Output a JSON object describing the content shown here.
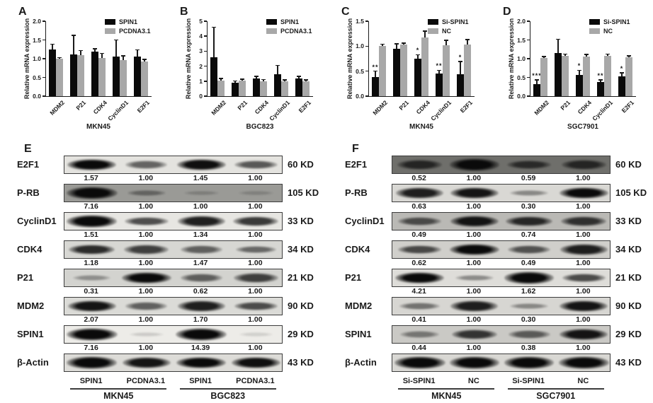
{
  "figure": {
    "background": "#ffffff"
  },
  "colors": {
    "black_bar": "#0a0a0a",
    "gray_bar": "#a8a8a8",
    "axis": "#1a1a1a",
    "band": "#0a0a0a"
  },
  "ylabel": "Relative mRNA expression",
  "chart_data": [
    {
      "type": "bar",
      "panel_label": "A",
      "cell_line": "MKN45",
      "ylabel": "Relative mRNA expression",
      "categories": [
        "MDM2",
        "P21",
        "CDK4",
        "CyclinD1",
        "E2F1"
      ],
      "ymax": 2.0,
      "yticks": [
        0,
        0.5,
        1.0,
        1.5,
        2.0
      ],
      "ytick_labels": [
        "0.0",
        "0.5",
        "1.0",
        "1.5",
        "2.0"
      ],
      "legend_position": "top-right",
      "series": [
        {
          "name": "SPIN1",
          "color": "#0a0a0a",
          "values": [
            1.25,
            1.12,
            1.18,
            1.05,
            1.06
          ],
          "errors": [
            0.14,
            0.5,
            0.08,
            0.45,
            0.18
          ]
        },
        {
          "name": "PCDNA3.1",
          "color": "#a8a8a8",
          "values": [
            1.0,
            1.1,
            1.01,
            0.96,
            0.93
          ],
          "errors": [
            0.03,
            0.12,
            0.13,
            0.12,
            0.05
          ]
        }
      ],
      "significance": [
        "",
        "",
        "",
        "",
        ""
      ]
    },
    {
      "type": "bar",
      "panel_label": "B",
      "cell_line": "BGC823",
      "ylabel": "Relative mRNA expression",
      "categories": [
        "MDM2",
        "P21",
        "CDK4",
        "CyclinD1",
        "E2F1"
      ],
      "ymax": 5,
      "yticks": [
        0,
        1,
        2,
        3,
        4,
        5
      ],
      "ytick_labels": [
        "0",
        "1",
        "2",
        "3",
        "4",
        "5"
      ],
      "legend_position": "top-right",
      "series": [
        {
          "name": "SPIN1",
          "color": "#0a0a0a",
          "values": [
            2.6,
            0.9,
            1.2,
            1.45,
            1.2
          ],
          "errors": [
            2.0,
            0.12,
            0.12,
            0.6,
            0.13
          ]
        },
        {
          "name": "PCDNA3.1",
          "color": "#a8a8a8",
          "values": [
            1.05,
            1.05,
            1.0,
            1.0,
            1.0
          ],
          "errors": [
            0.13,
            0.08,
            0.1,
            0.08,
            0.08
          ]
        }
      ],
      "significance": [
        "",
        "",
        "",
        "",
        ""
      ]
    },
    {
      "type": "bar",
      "panel_label": "C",
      "cell_line": "MKN45",
      "ylabel": "Relative mRNA expression",
      "categories": [
        "MDM2",
        "P21",
        "CDK4",
        "CyclinD1",
        "E2F1"
      ],
      "ymax": 1.5,
      "yticks": [
        0,
        0.5,
        1.0,
        1.5
      ],
      "ytick_labels": [
        "0.0",
        "0.5",
        "1.0",
        "1.5"
      ],
      "legend_position": "top-right",
      "series": [
        {
          "name": "Si-SPIN1",
          "color": "#0a0a0a",
          "values": [
            0.38,
            0.95,
            0.75,
            0.45,
            0.44
          ],
          "errors": [
            0.12,
            0.1,
            0.08,
            0.07,
            0.25
          ]
        },
        {
          "name": "NC",
          "color": "#a8a8a8",
          "values": [
            1.0,
            1.03,
            1.17,
            1.02,
            1.03
          ],
          "errors": [
            0.04,
            0.03,
            0.13,
            0.1,
            0.1
          ]
        }
      ],
      "significance": [
        "**",
        "",
        "*",
        "**",
        "*"
      ]
    },
    {
      "type": "bar",
      "panel_label": "D",
      "cell_line": "SGC7901",
      "ylabel": "Relative mRNA expression",
      "categories": [
        "MDM2",
        "P21",
        "CDK4",
        "CyclinD1",
        "E2F1"
      ],
      "ymax": 2.0,
      "yticks": [
        0,
        0.5,
        1.0,
        1.5,
        2.0
      ],
      "ytick_labels": [
        "0.0",
        "0.5",
        "1.0",
        "1.5",
        "2.0"
      ],
      "legend_position": "top-right",
      "series": [
        {
          "name": "Si-SPIN1",
          "color": "#0a0a0a",
          "values": [
            0.33,
            1.15,
            0.57,
            0.38,
            0.53
          ],
          "errors": [
            0.1,
            0.37,
            0.12,
            0.05,
            0.09
          ]
        },
        {
          "name": "NC",
          "color": "#a8a8a8",
          "values": [
            1.02,
            1.07,
            1.06,
            1.07,
            1.03
          ],
          "errors": [
            0.04,
            0.05,
            0.05,
            0.05,
            0.05
          ]
        }
      ],
      "significance": [
        "***",
        "",
        "*",
        "**",
        "*"
      ]
    }
  ],
  "blot_panels": [
    {
      "panel_label": "E",
      "lane_labels": [
        "SPIN1",
        "PCDNA3.1",
        "SPIN1",
        "PCDNA3.1"
      ],
      "groups": [
        "MKN45",
        "BGC823"
      ],
      "rows": [
        {
          "protein": "E2F1",
          "kd": "60 KD",
          "values": [
            "1.57",
            "1.00",
            "1.45",
            "1.00"
          ],
          "bands": [
            0.9,
            0.5,
            0.88,
            0.55
          ],
          "bg": "#e4e3df"
        },
        {
          "protein": "P-RB",
          "kd": "105 KD",
          "values": [
            "7.16",
            "1.00",
            "1.00",
            "1.00"
          ],
          "bands": [
            1.0,
            0.3,
            0.12,
            0.1
          ],
          "bg": "#9a9a96"
        },
        {
          "protein": "CyclinD1",
          "kd": "33 KD",
          "values": [
            "1.51",
            "1.00",
            "1.34",
            "1.00"
          ],
          "bands": [
            0.95,
            0.6,
            0.8,
            0.7
          ],
          "bg": "#e7e6e2"
        },
        {
          "protein": "CDK4",
          "kd": "34 KD",
          "values": [
            "1.18",
            "1.00",
            "1.47",
            "1.00"
          ],
          "bands": [
            0.75,
            0.65,
            0.5,
            0.45
          ],
          "bg": "#d7d7d3"
        },
        {
          "protein": "P21",
          "kd": "21 KD",
          "values": [
            "0.31",
            "1.00",
            "0.62",
            "1.00"
          ],
          "bands": [
            0.25,
            0.9,
            0.5,
            0.65
          ],
          "bg": "#d3d3cf"
        },
        {
          "protein": "MDM2",
          "kd": "90 KD",
          "values": [
            "2.07",
            "1.00",
            "1.70",
            "1.00"
          ],
          "bands": [
            0.85,
            0.5,
            0.8,
            0.6
          ],
          "bg": "#dbdbd7"
        },
        {
          "protein": "SPIN1",
          "kd": "29 KD",
          "values": [
            "7.16",
            "1.00",
            "14.39",
            "1.00"
          ],
          "bands": [
            1.0,
            0.06,
            1.0,
            0.04
          ],
          "bg": "#edece8"
        },
        {
          "protein": "β-Actin",
          "kd": "43 KD",
          "values": [],
          "bands": [
            0.95,
            0.85,
            0.92,
            0.88
          ],
          "bg": "#dddcd8"
        }
      ]
    },
    {
      "panel_label": "F",
      "lane_labels": [
        "Si-SPIN1",
        "NC",
        "Si-SPIN1",
        "NC"
      ],
      "groups": [
        "MKN45",
        "SGC7901"
      ],
      "rows": [
        {
          "protein": "E2F1",
          "kd": "60 KD",
          "values": [
            "0.52",
            "1.00",
            "0.59",
            "1.00"
          ],
          "bands": [
            0.65,
            0.95,
            0.6,
            0.65
          ],
          "bg": "#6f6f6b"
        },
        {
          "protein": "P-RB",
          "kd": "105 KD",
          "values": [
            "0.63",
            "1.00",
            "0.30",
            "1.00"
          ],
          "bands": [
            0.8,
            0.85,
            0.3,
            0.9
          ],
          "bg": "#d9d8d4"
        },
        {
          "protein": "CyclinD1",
          "kd": "33 KD",
          "values": [
            "0.49",
            "1.00",
            "0.74",
            "1.00"
          ],
          "bands": [
            0.55,
            0.85,
            0.75,
            0.7
          ],
          "bg": "#bab9b5"
        },
        {
          "protein": "CDK4",
          "kd": "34 KD",
          "values": [
            "0.62",
            "1.00",
            "0.49",
            "1.00"
          ],
          "bands": [
            0.6,
            0.9,
            0.55,
            0.8
          ],
          "bg": "#d0cfcb"
        },
        {
          "protein": "P21",
          "kd": "21 KD",
          "values": [
            "4.21",
            "1.00",
            "1.62",
            "1.00"
          ],
          "bands": [
            0.9,
            0.3,
            0.95,
            0.6
          ],
          "bg": "#deddd9"
        },
        {
          "protein": "MDM2",
          "kd": "90 KD",
          "values": [
            "0.41",
            "1.00",
            "0.30",
            "1.00"
          ],
          "bands": [
            0.4,
            0.8,
            0.3,
            0.85
          ],
          "bg": "#d7d6d2"
        },
        {
          "protein": "SPIN1",
          "kd": "29 KD",
          "values": [
            "0.44",
            "1.00",
            "0.38",
            "1.00"
          ],
          "bands": [
            0.35,
            0.7,
            0.5,
            0.85
          ],
          "bg": "#cac9c5"
        },
        {
          "protein": "β-Actin",
          "kd": "43 KD",
          "values": [],
          "bands": [
            1.0,
            0.95,
            0.95,
            0.95
          ],
          "bg": "#d9d8d4"
        }
      ]
    }
  ]
}
